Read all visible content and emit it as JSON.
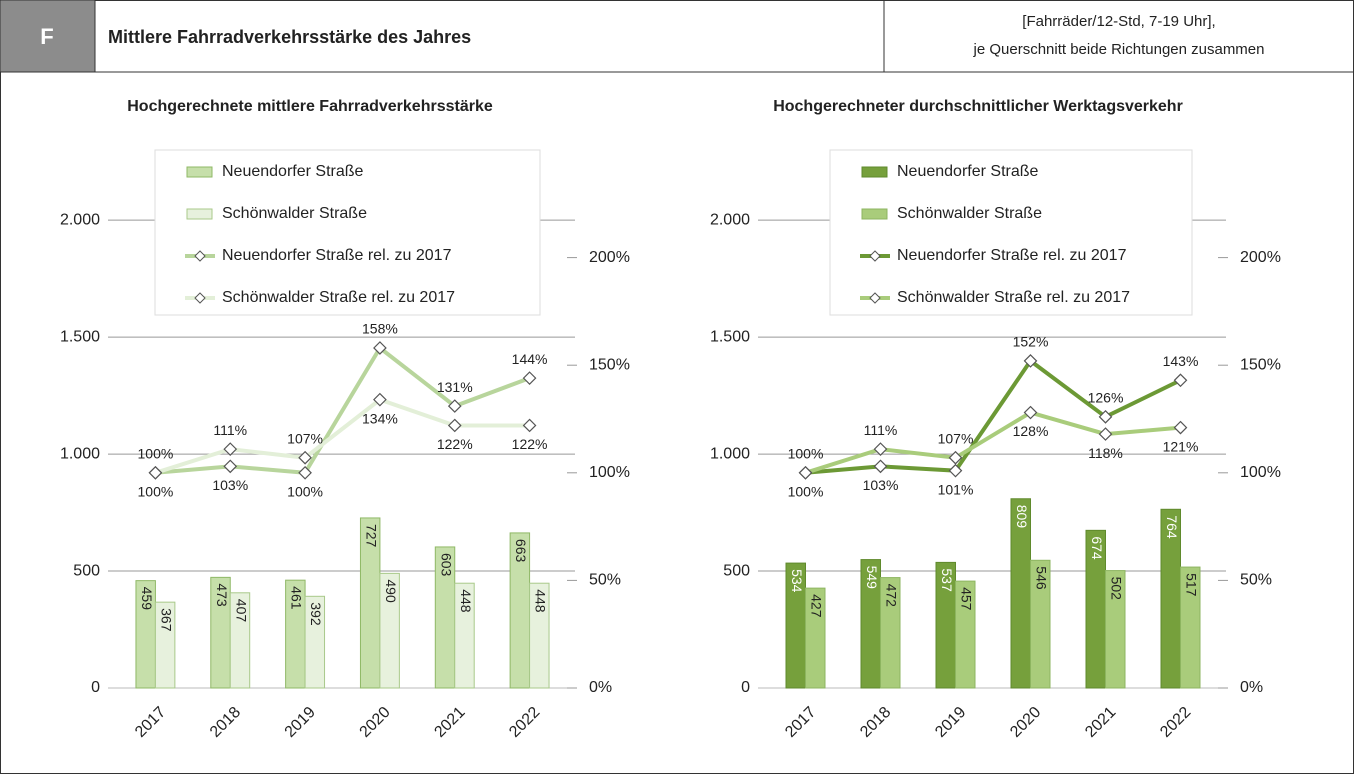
{
  "header": {
    "badge": "F",
    "title": "Mittlere Fahrradverkehrsstärke des Jahres",
    "note": [
      "[Fahrräder/12-Std, 7-19 Uhr],",
      "je Querschnitt beide Richtungen zusammen"
    ]
  },
  "chart_data": [
    {
      "type": "bar",
      "title": "Hochgerechnete mittlere Fahrradverkehrsstärke",
      "categories": [
        "2017",
        "2018",
        "2019",
        "2020",
        "2021",
        "2022"
      ],
      "series": [
        {
          "name": "Neuendorfer Straße",
          "color": "#c6dfaa",
          "stroke": "#8fb866",
          "label_color": "#222",
          "values": [
            459,
            473,
            461,
            727,
            603,
            663
          ]
        },
        {
          "name": "Schönwalder Straße",
          "color": "#e7f1dd",
          "stroke": "#a9c98a",
          "label_color": "#222",
          "values": [
            367,
            407,
            392,
            490,
            448,
            448
          ]
        },
        {
          "name": "Neuendorfer Straße rel. zu 2017",
          "axis": "y2",
          "color": "#b8d59c",
          "values": [
            100,
            103,
            100,
            158,
            131,
            144
          ],
          "value_labels": [
            "100%",
            "103%",
            "100%",
            "158%",
            "131%",
            "144%"
          ]
        },
        {
          "name": "Schönwalder Straße rel. zu 2017",
          "axis": "y2",
          "color": "#e3efd8",
          "values": [
            100,
            111,
            107,
            134,
            122,
            122
          ],
          "value_labels": [
            "100%",
            "111%",
            "107%",
            "134%",
            "122%",
            "122%"
          ]
        }
      ],
      "ylim": [
        0,
        2300
      ],
      "yticks": [
        0,
        500,
        {
          "value": 1000,
          "label": "1.000"
        },
        {
          "value": 1500,
          "label": "1.500"
        },
        {
          "value": 2000,
          "label": "2.000"
        }
      ],
      "y2lim": [
        0,
        250
      ],
      "y2ticks": [
        {
          "value": 0,
          "label": "0%"
        },
        {
          "value": 50,
          "label": "50%"
        },
        {
          "value": 100,
          "label": "100%"
        },
        {
          "value": 150,
          "label": "150%"
        },
        {
          "value": 200,
          "label": "200%"
        }
      ],
      "grid": true,
      "legend": "upper left"
    },
    {
      "type": "bar",
      "title": "Hochgerechneter durchschnittlicher Werktagsverkehr",
      "categories": [
        "2017",
        "2018",
        "2019",
        "2020",
        "2021",
        "2022"
      ],
      "series": [
        {
          "name": "Neuendorfer Straße",
          "color": "#76a03c",
          "stroke": "#5f8a2c",
          "label_color": "#ffffff",
          "values": [
            534,
            549,
            537,
            809,
            674,
            764
          ]
        },
        {
          "name": "Schönwalder Straße",
          "color": "#a9cc7b",
          "stroke": "#8db560",
          "label_color": "#222",
          "values": [
            427,
            472,
            457,
            546,
            502,
            517
          ]
        },
        {
          "name": "Neuendorfer Straße rel. zu 2017",
          "axis": "y2",
          "color": "#6c9935",
          "values": [
            100,
            103,
            101,
            152,
            126,
            143
          ],
          "value_labels": [
            "100%",
            "103%",
            "101%",
            "152%",
            "126%",
            "143%"
          ]
        },
        {
          "name": "Schönwalder Straße rel. zu 2017",
          "axis": "y2",
          "color": "#a9cc7b",
          "values": [
            100,
            111,
            107,
            128,
            118,
            121
          ],
          "value_labels": [
            "100%",
            "111%",
            "107%",
            "128%",
            "118%",
            "121%"
          ]
        }
      ],
      "ylim": [
        0,
        2300
      ],
      "yticks": [
        0,
        500,
        {
          "value": 1000,
          "label": "1.000"
        },
        {
          "value": 1500,
          "label": "1.500"
        },
        {
          "value": 2000,
          "label": "2.000"
        }
      ],
      "y2lim": [
        0,
        250
      ],
      "y2ticks": [
        {
          "value": 0,
          "label": "0%"
        },
        {
          "value": 50,
          "label": "50%"
        },
        {
          "value": 100,
          "label": "100%"
        },
        {
          "value": 150,
          "label": "150%"
        },
        {
          "value": 200,
          "label": "200%"
        }
      ],
      "grid": true,
      "legend": "upper left"
    }
  ]
}
